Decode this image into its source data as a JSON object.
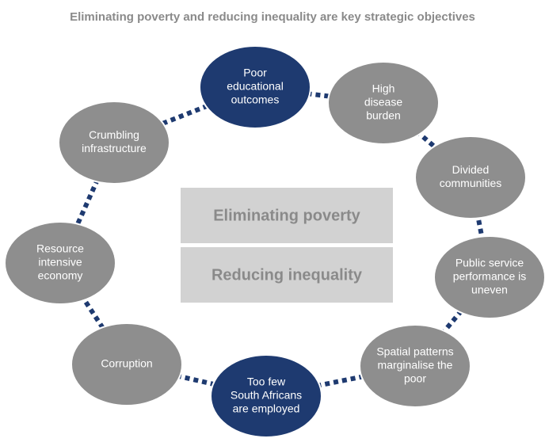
{
  "title": "Eliminating poverty and reducing inequality are key strategic objectives",
  "center": [
    "Eliminating poverty",
    "Reducing inequality"
  ],
  "nodes": [
    {
      "lines": [
        "Poor",
        "educational",
        "outcomes"
      ],
      "color": "#1e3a70"
    },
    {
      "lines": [
        "High",
        "disease",
        "burden"
      ],
      "color": "#8e8e8e"
    },
    {
      "lines": [
        "Divided",
        "communities"
      ],
      "color": "#8e8e8e"
    },
    {
      "lines": [
        "Public service",
        "performance is",
        "uneven"
      ],
      "color": "#8e8e8e"
    },
    {
      "lines": [
        "Spatial patterns",
        "marginalise the",
        "poor"
      ],
      "color": "#8e8e8e"
    },
    {
      "lines": [
        "Too few",
        "South Africans",
        "are employed"
      ],
      "color": "#1e3a70"
    },
    {
      "lines": [
        "Corruption"
      ],
      "color": "#8e8e8e"
    },
    {
      "lines": [
        "Resource",
        "intensive",
        "economy"
      ],
      "color": "#8e8e8e"
    },
    {
      "lines": [
        "Crumbling",
        "infrastructure"
      ],
      "color": "#8e8e8e"
    }
  ]
}
